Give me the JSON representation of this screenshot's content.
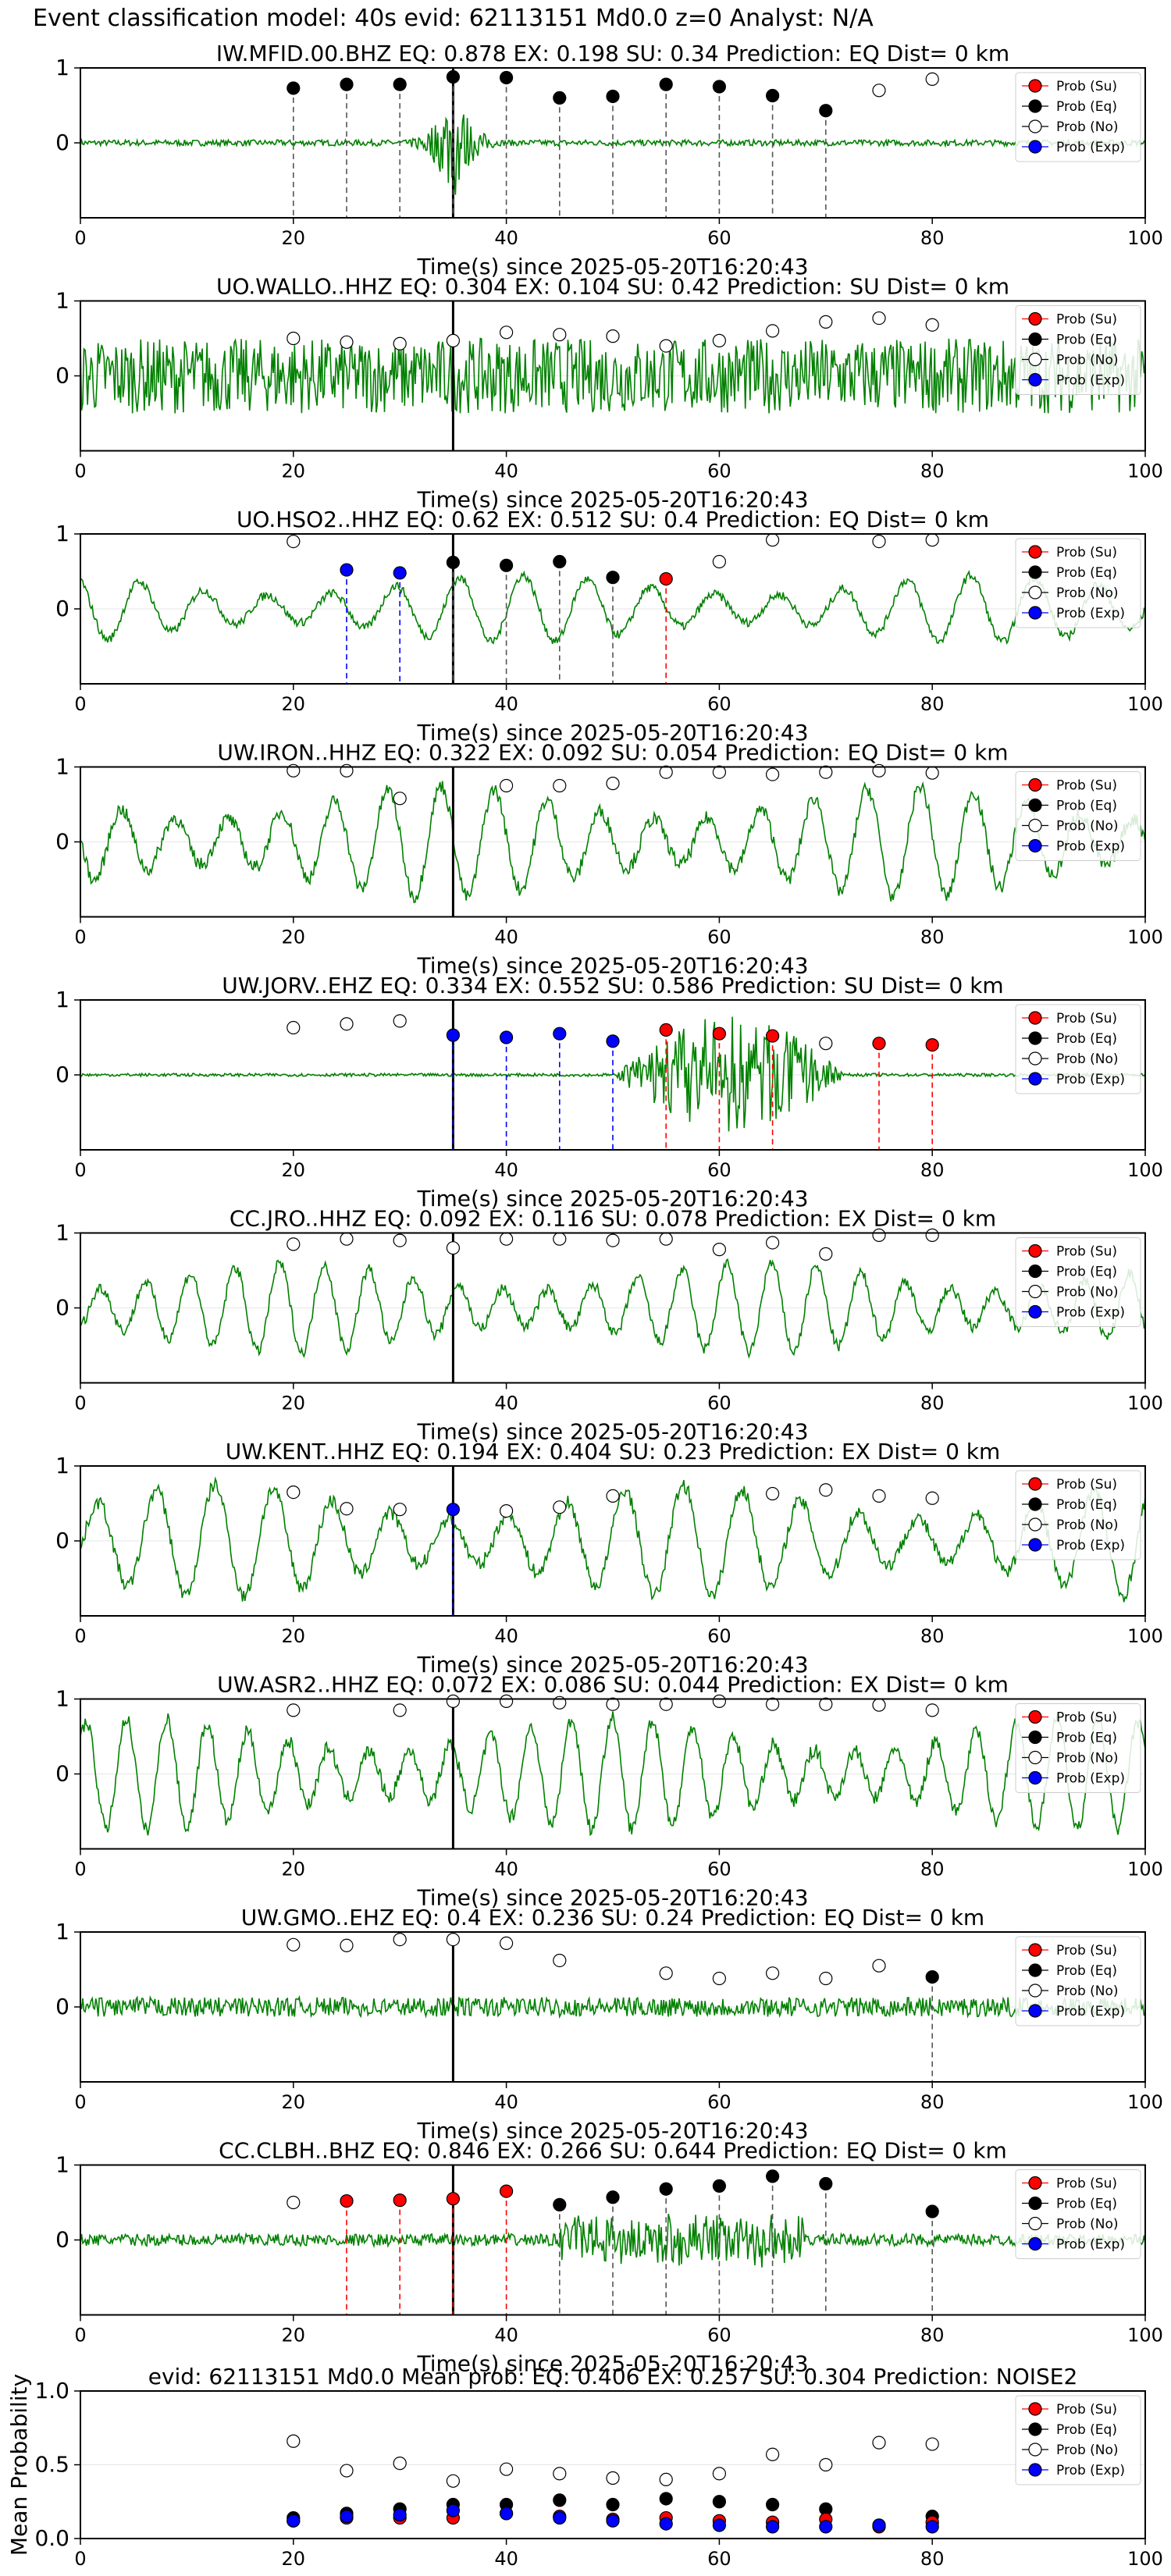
{
  "suptitle": "Event classification model: 40s evid: 62113151 Md0.0 z=0 Analyst: N/A",
  "legend": [
    "Prob (Su)",
    "Prob (Eq)",
    "Prob (No)",
    "Prob (Exp)"
  ],
  "colors": {
    "su": "#ff0000",
    "eq": "#000000",
    "no": "#ffffff",
    "ex": "#0000ff",
    "trace": "#008000",
    "grid": "#e6e6e6"
  },
  "xlabel": "Time(s) since 2025-05-20T16:20:43",
  "chart_data": [
    {
      "type": "line",
      "station": "IW.MFID.00.BHZ",
      "title": "IW.MFID.00.BHZ   EQ: 0.878  EX: 0.198  SU: 0.34   Prediction: EQ    Dist= 0 km",
      "xlim": [
        0,
        100
      ],
      "ylim": [
        -1,
        1
      ],
      "xticks": [
        0,
        20,
        40,
        60,
        80,
        100
      ],
      "yticks": [
        1,
        0
      ],
      "xlabel": "Time(s) since 2025-05-20T16:20:43",
      "trace": {
        "style": "quiet",
        "amp": 0.04,
        "burst_at": 35,
        "burst_amp": 0.9
      },
      "points": [
        [
          20,
          "eq",
          0.73
        ],
        [
          25,
          "eq",
          0.78
        ],
        [
          30,
          "eq",
          0.78
        ],
        [
          35,
          "eq",
          0.88
        ],
        [
          40,
          "eq",
          0.87
        ],
        [
          45,
          "eq",
          0.6
        ],
        [
          50,
          "eq",
          0.62
        ],
        [
          55,
          "eq",
          0.78
        ],
        [
          60,
          "eq",
          0.75
        ],
        [
          65,
          "eq",
          0.63
        ],
        [
          70,
          "eq",
          0.43
        ],
        [
          75,
          "no",
          0.7
        ],
        [
          80,
          "no",
          0.85
        ]
      ]
    },
    {
      "type": "line",
      "station": "UO.WALLO..HHZ",
      "title": "UO.WALLO..HHZ   EQ: 0.304  EX: 0.104  SU: 0.42   Prediction: SU    Dist= 0 km",
      "xlim": [
        0,
        100
      ],
      "ylim": [
        -1,
        1
      ],
      "xticks": [
        0,
        20,
        40,
        60,
        80,
        100
      ],
      "yticks": [
        1,
        0
      ],
      "xlabel": "Time(s) since 2025-05-20T16:20:43",
      "trace": {
        "style": "noisy",
        "amp": 0.5
      },
      "points": [
        [
          20,
          "no",
          0.5
        ],
        [
          25,
          "no",
          0.45
        ],
        [
          30,
          "no",
          0.43
        ],
        [
          35,
          "no",
          0.47
        ],
        [
          40,
          "no",
          0.58
        ],
        [
          45,
          "no",
          0.55
        ],
        [
          50,
          "no",
          0.53
        ],
        [
          55,
          "no",
          0.4
        ],
        [
          60,
          "no",
          0.47
        ],
        [
          65,
          "no",
          0.6
        ],
        [
          70,
          "no",
          0.72
        ],
        [
          75,
          "no",
          0.77
        ],
        [
          80,
          "no",
          0.68
        ]
      ]
    },
    {
      "type": "line",
      "station": "UO.HSO2..HHZ",
      "title": "UO.HSO2..HHZ   EQ: 0.62  EX: 0.512  SU: 0.4   Prediction: EQ    Dist= 0 km",
      "xlim": [
        0,
        100
      ],
      "ylim": [
        -1,
        1
      ],
      "xticks": [
        0,
        20,
        40,
        60,
        80,
        100
      ],
      "yticks": [
        1,
        0
      ],
      "xlabel": "Time(s) since 2025-05-20T16:20:43",
      "trace": {
        "style": "wavy",
        "amp": 0.45,
        "period": 6
      },
      "points": [
        [
          20,
          "no",
          0.9
        ],
        [
          25,
          "ex",
          0.52
        ],
        [
          30,
          "ex",
          0.48
        ],
        [
          35,
          "eq",
          0.62
        ],
        [
          40,
          "eq",
          0.58
        ],
        [
          45,
          "eq",
          0.63
        ],
        [
          50,
          "eq",
          0.42
        ],
        [
          55,
          "su",
          0.4
        ],
        [
          60,
          "no",
          0.63
        ],
        [
          65,
          "no",
          0.92
        ],
        [
          75,
          "no",
          0.9
        ],
        [
          80,
          "no",
          0.92
        ]
      ]
    },
    {
      "type": "line",
      "station": "UW.IRON..HHZ",
      "title": "UW.IRON..HHZ   EQ: 0.322  EX: 0.092  SU: 0.054   Prediction: EQ    Dist= 0 km",
      "xlim": [
        0,
        100
      ],
      "ylim": [
        -1,
        1
      ],
      "xticks": [
        0,
        20,
        40,
        60,
        80,
        100
      ],
      "yticks": [
        1,
        0
      ],
      "xlabel": "Time(s) since 2025-05-20T16:20:43",
      "trace": {
        "style": "wavy",
        "amp": 0.75,
        "period": 5
      },
      "points": [
        [
          20,
          "no",
          0.95
        ],
        [
          25,
          "no",
          0.95
        ],
        [
          30,
          "no",
          0.58
        ],
        [
          40,
          "no",
          0.75
        ],
        [
          45,
          "no",
          0.75
        ],
        [
          50,
          "no",
          0.78
        ],
        [
          55,
          "no",
          0.93
        ],
        [
          60,
          "no",
          0.93
        ],
        [
          65,
          "no",
          0.9
        ],
        [
          70,
          "no",
          0.93
        ],
        [
          75,
          "no",
          0.95
        ],
        [
          80,
          "no",
          0.92
        ]
      ]
    },
    {
      "type": "line",
      "station": "UW.JORV..EHZ",
      "title": "UW.JORV..EHZ   EQ: 0.334  EX: 0.552  SU: 0.586   Prediction: SU    Dist= 0 km",
      "xlim": [
        0,
        100
      ],
      "ylim": [
        -1,
        1
      ],
      "xticks": [
        0,
        20,
        40,
        60,
        80,
        100
      ],
      "yticks": [
        1,
        0
      ],
      "xlabel": "Time(s) since 2025-05-20T16:20:43",
      "trace": {
        "style": "quiet",
        "amp": 0.02,
        "burst_range": [
          50,
          72
        ],
        "burst_amp": 0.8
      },
      "points": [
        [
          20,
          "no",
          0.63
        ],
        [
          25,
          "no",
          0.68
        ],
        [
          30,
          "no",
          0.72
        ],
        [
          35,
          "ex",
          0.53
        ],
        [
          40,
          "ex",
          0.5
        ],
        [
          45,
          "ex",
          0.55
        ],
        [
          50,
          "ex",
          0.45
        ],
        [
          55,
          "su",
          0.6
        ],
        [
          60,
          "su",
          0.55
        ],
        [
          65,
          "su",
          0.52
        ],
        [
          70,
          "no",
          0.42
        ],
        [
          75,
          "su",
          0.42
        ],
        [
          80,
          "su",
          0.4
        ]
      ]
    },
    {
      "type": "line",
      "station": "CC.JRO..HHZ",
      "title": "CC.JRO..HHZ   EQ: 0.092  EX: 0.116  SU: 0.078   Prediction: EX    Dist= 0 km",
      "xlim": [
        0,
        100
      ],
      "ylim": [
        -1,
        1
      ],
      "xticks": [
        0,
        20,
        40,
        60,
        80,
        100
      ],
      "yticks": [
        1,
        0
      ],
      "xlabel": "Time(s) since 2025-05-20T16:20:43",
      "trace": {
        "style": "wavy",
        "amp": 0.6,
        "period": 4.2
      },
      "points": [
        [
          20,
          "no",
          0.85
        ],
        [
          25,
          "no",
          0.92
        ],
        [
          30,
          "no",
          0.9
        ],
        [
          35,
          "no",
          0.8
        ],
        [
          40,
          "no",
          0.92
        ],
        [
          45,
          "no",
          0.92
        ],
        [
          50,
          "no",
          0.9
        ],
        [
          55,
          "no",
          0.92
        ],
        [
          60,
          "no",
          0.78
        ],
        [
          65,
          "no",
          0.87
        ],
        [
          70,
          "no",
          0.72
        ],
        [
          75,
          "no",
          0.97
        ],
        [
          80,
          "no",
          0.97
        ]
      ]
    },
    {
      "type": "line",
      "station": "UW.KENT..HHZ",
      "title": "UW.KENT..HHZ   EQ: 0.194  EX: 0.404  SU: 0.23   Prediction: EX    Dist= 0 km",
      "xlim": [
        0,
        100
      ],
      "ylim": [
        -1,
        1
      ],
      "xticks": [
        0,
        20,
        40,
        60,
        80,
        100
      ],
      "yticks": [
        1,
        0
      ],
      "xlabel": "Time(s) since 2025-05-20T16:20:43",
      "trace": {
        "style": "wavy",
        "amp": 0.75,
        "period": 5.5
      },
      "points": [
        [
          20,
          "no",
          0.65
        ],
        [
          25,
          "no",
          0.43
        ],
        [
          30,
          "no",
          0.42
        ],
        [
          35,
          "ex",
          0.42
        ],
        [
          40,
          "no",
          0.4
        ],
        [
          45,
          "no",
          0.45
        ],
        [
          50,
          "no",
          0.6
        ],
        [
          65,
          "no",
          0.63
        ],
        [
          70,
          "no",
          0.68
        ],
        [
          75,
          "no",
          0.6
        ],
        [
          80,
          "no",
          0.57
        ]
      ]
    },
    {
      "type": "line",
      "station": "UW.ASR2..HHZ",
      "title": "UW.ASR2..HHZ   EQ: 0.072  EX: 0.086  SU: 0.044   Prediction: EX    Dist= 0 km",
      "xlim": [
        0,
        100
      ],
      "ylim": [
        -1,
        1
      ],
      "xticks": [
        0,
        20,
        40,
        60,
        80,
        100
      ],
      "yticks": [
        1,
        0
      ],
      "xlabel": "Time(s) since 2025-05-20T16:20:43",
      "trace": {
        "style": "wavy",
        "amp": 0.75,
        "period": 3.8
      },
      "points": [
        [
          20,
          "no",
          0.85
        ],
        [
          30,
          "no",
          0.85
        ],
        [
          35,
          "no",
          0.97
        ],
        [
          40,
          "no",
          0.97
        ],
        [
          45,
          "no",
          0.95
        ],
        [
          50,
          "no",
          0.93
        ],
        [
          55,
          "no",
          0.93
        ],
        [
          60,
          "no",
          0.97
        ],
        [
          65,
          "no",
          0.93
        ],
        [
          70,
          "no",
          0.93
        ],
        [
          75,
          "no",
          0.92
        ],
        [
          80,
          "no",
          0.85
        ]
      ]
    },
    {
      "type": "line",
      "station": "UW.GMO..EHZ",
      "title": "UW.GMO..EHZ   EQ: 0.4  EX: 0.236  SU: 0.24   Prediction: EQ    Dist= 0 km",
      "xlim": [
        0,
        100
      ],
      "ylim": [
        -1,
        1
      ],
      "xticks": [
        0,
        20,
        40,
        60,
        80,
        100
      ],
      "yticks": [
        1,
        0
      ],
      "xlabel": "Time(s) since 2025-05-20T16:20:43",
      "trace": {
        "style": "noisy",
        "amp": 0.13
      },
      "points": [
        [
          20,
          "no",
          0.83
        ],
        [
          25,
          "no",
          0.82
        ],
        [
          30,
          "no",
          0.9
        ],
        [
          35,
          "no",
          0.9
        ],
        [
          40,
          "no",
          0.85
        ],
        [
          45,
          "no",
          0.62
        ],
        [
          55,
          "no",
          0.45
        ],
        [
          60,
          "no",
          0.38
        ],
        [
          65,
          "no",
          0.45
        ],
        [
          70,
          "no",
          0.38
        ],
        [
          75,
          "no",
          0.55
        ],
        [
          80,
          "eq",
          0.4
        ]
      ]
    },
    {
      "type": "line",
      "station": "CC.CLBH..BHZ",
      "title": "CC.CLBH..BHZ   EQ: 0.846  EX: 0.266  SU: 0.644   Prediction: EQ    Dist= 0 km",
      "xlim": [
        0,
        100
      ],
      "ylim": [
        -1,
        1
      ],
      "xticks": [
        0,
        20,
        40,
        60,
        80,
        100
      ],
      "yticks": [
        1,
        0
      ],
      "xlabel": "Time(s) since 2025-05-20T16:20:43",
      "trace": {
        "style": "noisy",
        "amp": 0.08,
        "burst_range": [
          45,
          68
        ],
        "burst_amp": 0.3
      },
      "points": [
        [
          20,
          "no",
          0.5
        ],
        [
          25,
          "su",
          0.52
        ],
        [
          30,
          "su",
          0.53
        ],
        [
          35,
          "su",
          0.55
        ],
        [
          40,
          "su",
          0.65
        ],
        [
          45,
          "eq",
          0.47
        ],
        [
          50,
          "eq",
          0.57
        ],
        [
          55,
          "eq",
          0.68
        ],
        [
          60,
          "eq",
          0.72
        ],
        [
          65,
          "eq",
          0.85
        ],
        [
          70,
          "eq",
          0.75
        ],
        [
          80,
          "eq",
          0.38
        ]
      ]
    },
    {
      "type": "scatter",
      "title": "evid: 62113151  Md0.0   Mean prob:   EQ: 0.406  EX: 0.257  SU: 0.304   Prediction: NOISE2",
      "ylabel": "Mean Probability",
      "xlim": [
        0,
        100
      ],
      "ylim": [
        0,
        1
      ],
      "xticks": [
        0,
        20,
        40,
        60,
        80,
        100
      ],
      "yticks": [
        0.0,
        0.5,
        1.0
      ],
      "times": [
        20,
        25,
        30,
        35,
        40,
        45,
        50,
        55,
        60,
        65,
        70,
        75,
        80
      ],
      "series": [
        {
          "key": "no",
          "values": [
            0.66,
            0.46,
            0.51,
            0.39,
            0.47,
            0.44,
            0.41,
            0.4,
            0.44,
            0.57,
            0.5,
            0.65,
            0.64
          ]
        },
        {
          "key": "eq",
          "values": [
            0.14,
            0.17,
            0.2,
            0.23,
            0.23,
            0.26,
            0.23,
            0.27,
            0.25,
            0.23,
            0.2,
            0.09,
            0.15
          ]
        },
        {
          "key": "su",
          "values": [
            0.12,
            0.14,
            0.14,
            0.14,
            0.17,
            0.15,
            0.13,
            0.14,
            0.12,
            0.11,
            0.13,
            0.08,
            0.11
          ]
        },
        {
          "key": "ex",
          "values": [
            0.12,
            0.15,
            0.16,
            0.19,
            0.17,
            0.14,
            0.12,
            0.1,
            0.09,
            0.08,
            0.08,
            0.09,
            0.08
          ]
        }
      ]
    }
  ]
}
